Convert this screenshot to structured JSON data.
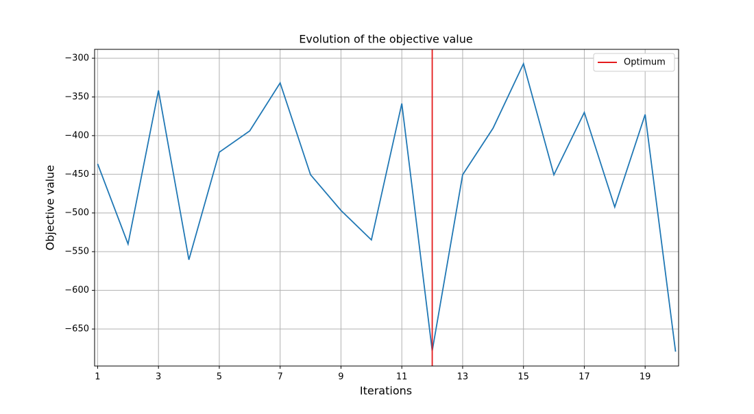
{
  "chart_data": {
    "type": "line",
    "title": "Evolution of the objective value",
    "xlabel": "Iterations",
    "ylabel": "Objective value",
    "x": [
      1,
      2,
      3,
      4,
      5,
      6,
      7,
      8,
      9,
      10,
      11,
      12,
      13,
      14,
      15,
      16,
      17,
      18,
      19,
      20
    ],
    "series": [
      {
        "color": "#1f77b4",
        "values": [
          -436.5,
          -540.1,
          -341.6,
          -560.5,
          -421.4,
          -393.9,
          -331.9,
          -450.6,
          -496.7,
          -534.8,
          -358.5,
          -678.3,
          -450.6,
          -390.4,
          -307.1,
          -450.6,
          -370,
          -492.3,
          -372.7,
          -679.2
        ]
      }
    ],
    "vline": {
      "name": "Optimum",
      "x": 12,
      "color": "#e41a1c"
    },
    "xlim": [
      0.9,
      20.1
    ],
    "ylim": [
      -697.8,
      -288.5
    ],
    "xticks": [
      1,
      3,
      5,
      7,
      9,
      11,
      13,
      15,
      17,
      19
    ],
    "yticks": [
      {
        "value": -650,
        "label": "−650"
      },
      {
        "value": -600,
        "label": "−600"
      },
      {
        "value": -550,
        "label": "−550"
      },
      {
        "value": -500,
        "label": "−500"
      },
      {
        "value": -450,
        "label": "−450"
      },
      {
        "value": -400,
        "label": "−400"
      },
      {
        "value": -350,
        "label": "−350"
      },
      {
        "value": -300,
        "label": "−300"
      }
    ],
    "grid": true,
    "legend": "upper right"
  }
}
